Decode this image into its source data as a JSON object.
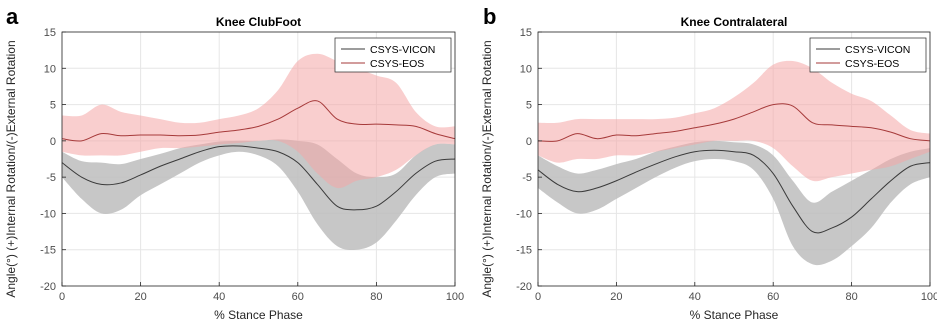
{
  "figure": {
    "colors": {
      "vicon_line": "#3a3a3a",
      "vicon_band": "#bdbdbd",
      "eos_line": "#a63a3a",
      "eos_band": "#f4a6a6",
      "grid": "#e6e6e6",
      "axis": "#262626",
      "tick_text": "#4d4d4d"
    }
  },
  "chart_data": [
    {
      "type": "line",
      "panel_label": "a",
      "title": "Knee ClubFoot",
      "xlabel": "% Stance Phase",
      "ylabel": "Angle(°) (+)Internal Rotation/(-)External Rotation",
      "xlim": [
        0,
        100
      ],
      "ylim": [
        -20,
        15
      ],
      "xticks": [
        "0",
        "20",
        "40",
        "60",
        "80",
        "100"
      ],
      "yticks": [
        "15",
        "10",
        "5",
        "0",
        "-5",
        "-10",
        "-15",
        "-20"
      ],
      "grid": true,
      "legend_position": "top-right",
      "x": [
        0,
        5,
        10,
        15,
        20,
        25,
        30,
        35,
        40,
        45,
        50,
        55,
        60,
        65,
        70,
        75,
        80,
        85,
        90,
        95,
        100
      ],
      "series": [
        {
          "name": "CSYS-VICON",
          "mean": [
            -3.0,
            -5.0,
            -6.0,
            -5.8,
            -4.7,
            -3.5,
            -2.5,
            -1.5,
            -0.8,
            -0.7,
            -1.0,
            -1.5,
            -3.0,
            -6.0,
            -9.0,
            -9.5,
            -9.0,
            -7.0,
            -4.5,
            -2.8,
            -2.5
          ],
          "upper": [
            -1.5,
            -2.8,
            -3.0,
            -3.2,
            -2.5,
            -1.8,
            -1.0,
            -0.5,
            -0.1,
            0.0,
            0.0,
            0.2,
            0.0,
            -0.5,
            -2.5,
            -4.5,
            -5.0,
            -4.5,
            -2.0,
            -0.5,
            -0.5
          ],
          "lower": [
            -5.0,
            -8.0,
            -10.0,
            -9.5,
            -7.5,
            -6.0,
            -4.5,
            -3.0,
            -2.0,
            -1.5,
            -2.0,
            -3.5,
            -7.0,
            -11.5,
            -14.5,
            -15.0,
            -14.0,
            -11.0,
            -7.5,
            -5.0,
            -4.5
          ]
        },
        {
          "name": "CSYS-EOS",
          "mean": [
            0.3,
            0.0,
            1.0,
            0.7,
            0.8,
            0.8,
            0.7,
            0.8,
            1.2,
            1.5,
            2.0,
            3.0,
            4.5,
            5.5,
            3.0,
            2.3,
            2.3,
            2.2,
            2.0,
            1.0,
            0.3
          ],
          "upper": [
            3.5,
            3.5,
            5.0,
            4.0,
            3.5,
            3.0,
            2.5,
            2.5,
            3.0,
            3.5,
            4.5,
            7.0,
            11.0,
            12.0,
            11.0,
            10.0,
            9.0,
            8.0,
            4.0,
            2.0,
            2.0
          ],
          "lower": [
            -1.5,
            -2.0,
            -2.0,
            -2.0,
            -1.5,
            -1.0,
            -1.0,
            -0.8,
            -0.5,
            -0.3,
            0.0,
            0.0,
            -1.5,
            -4.5,
            -6.5,
            -5.5,
            -5.0,
            -4.0,
            -2.0,
            -0.5,
            -0.5
          ]
        }
      ]
    },
    {
      "type": "line",
      "panel_label": "b",
      "title": "Knee Contralateral",
      "xlabel": "% Stance Phase",
      "ylabel": "Angle(°) (+)Internal Rotation/(-)External Rotation",
      "xlim": [
        0,
        100
      ],
      "ylim": [
        -20,
        15
      ],
      "xticks": [
        "0",
        "20",
        "40",
        "60",
        "80",
        "100"
      ],
      "yticks": [
        "15",
        "10",
        "5",
        "0",
        "-5",
        "-10",
        "-15",
        "-20"
      ],
      "grid": true,
      "legend_position": "top-right",
      "x": [
        0,
        5,
        10,
        15,
        20,
        25,
        30,
        35,
        40,
        45,
        50,
        55,
        60,
        65,
        70,
        75,
        80,
        85,
        90,
        95,
        100
      ],
      "series": [
        {
          "name": "CSYS-VICON",
          "mean": [
            -4.0,
            -6.0,
            -7.0,
            -6.5,
            -5.5,
            -4.3,
            -3.2,
            -2.2,
            -1.5,
            -1.3,
            -1.5,
            -2.0,
            -4.5,
            -9.0,
            -12.5,
            -12.0,
            -10.5,
            -8.0,
            -5.5,
            -3.5,
            -3.0
          ],
          "upper": [
            -2.0,
            -3.5,
            -4.5,
            -4.0,
            -3.2,
            -2.5,
            -1.5,
            -0.8,
            -0.2,
            0.0,
            -0.2,
            -0.5,
            -2.0,
            -5.5,
            -8.5,
            -7.0,
            -5.5,
            -4.0,
            -2.5,
            -1.5,
            -1.0
          ],
          "lower": [
            -6.5,
            -8.5,
            -10.0,
            -9.5,
            -8.0,
            -6.5,
            -5.0,
            -3.7,
            -2.8,
            -2.5,
            -2.8,
            -4.0,
            -8.0,
            -14.5,
            -17.0,
            -16.5,
            -14.5,
            -12.0,
            -8.5,
            -6.0,
            -5.0
          ]
        },
        {
          "name": "CSYS-EOS",
          "mean": [
            0.0,
            0.0,
            1.0,
            0.3,
            0.8,
            0.7,
            1.0,
            1.3,
            1.8,
            2.3,
            3.0,
            4.0,
            5.0,
            4.8,
            2.5,
            2.2,
            2.0,
            1.8,
            1.2,
            0.3,
            0.0
          ],
          "upper": [
            2.5,
            2.5,
            3.0,
            3.0,
            3.0,
            3.0,
            3.0,
            3.2,
            3.8,
            4.5,
            6.0,
            8.0,
            10.5,
            11.0,
            10.0,
            8.0,
            6.5,
            5.5,
            3.5,
            1.5,
            1.0
          ],
          "lower": [
            -2.0,
            -3.0,
            -2.5,
            -2.5,
            -2.0,
            -2.0,
            -1.5,
            -1.0,
            -0.5,
            0.0,
            0.0,
            0.0,
            -1.0,
            -3.5,
            -5.5,
            -5.0,
            -4.5,
            -4.0,
            -3.5,
            -2.5,
            -1.5
          ]
        }
      ]
    }
  ]
}
